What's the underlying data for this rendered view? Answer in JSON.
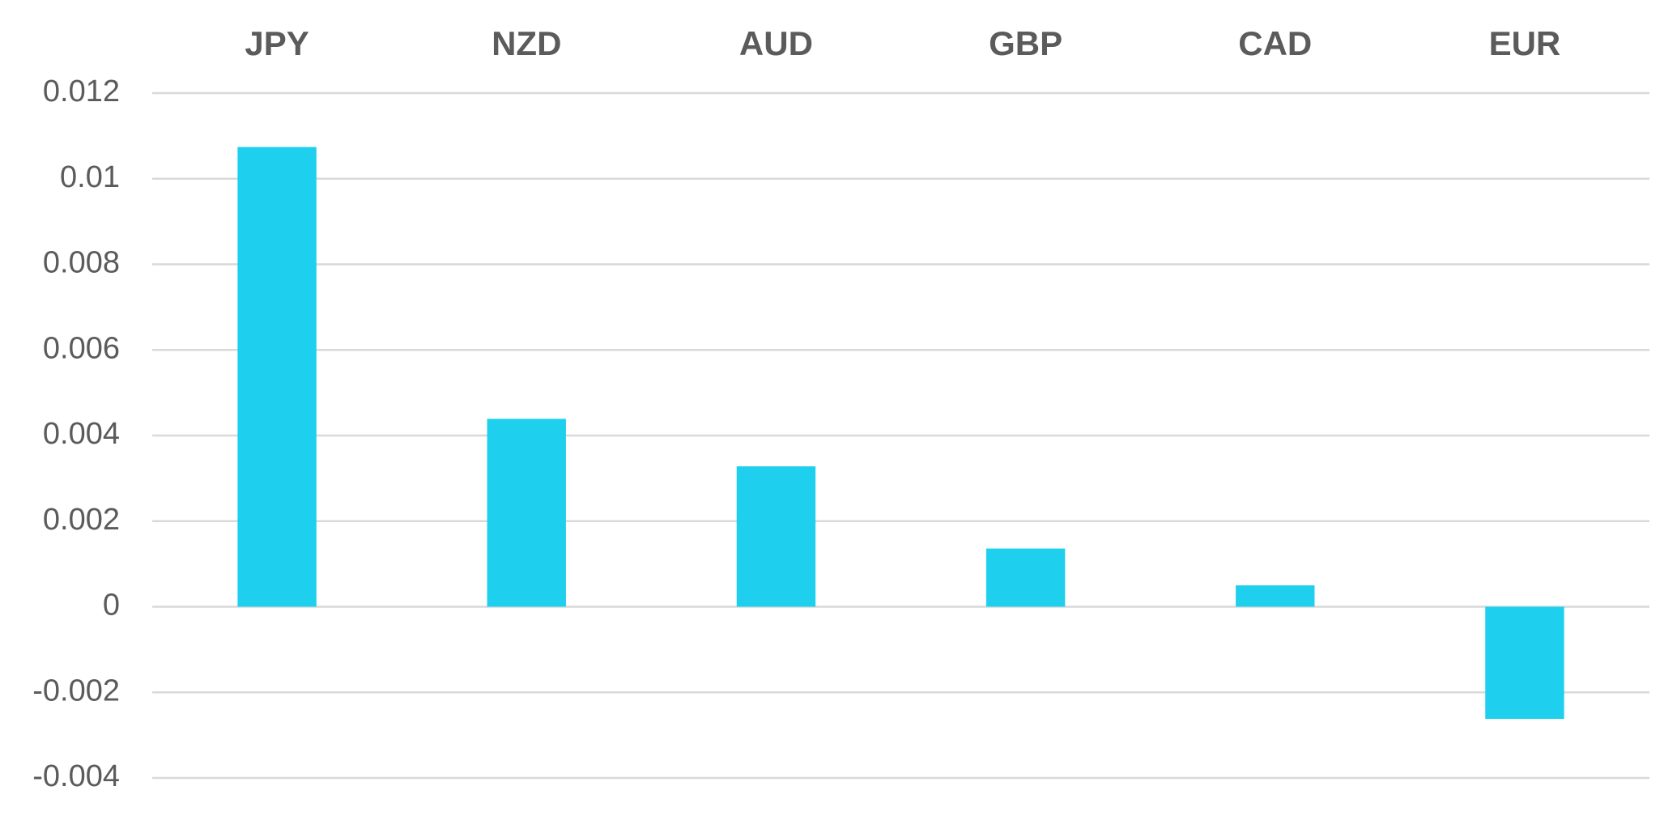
{
  "chart_data": {
    "type": "bar",
    "categories": [
      "JPY",
      "NZD",
      "AUD",
      "GBP",
      "CAD",
      "EUR"
    ],
    "values": [
      0.01074,
      0.00439,
      0.00328,
      0.00136,
      0.0005,
      -0.00262
    ],
    "color": "#1fd0ee",
    "ylim": [
      -0.004,
      0.012
    ],
    "yticks": [
      -0.004,
      -0.002,
      0,
      0.002,
      0.004,
      0.006,
      0.008,
      0.01,
      0.012
    ],
    "grid": true
  }
}
